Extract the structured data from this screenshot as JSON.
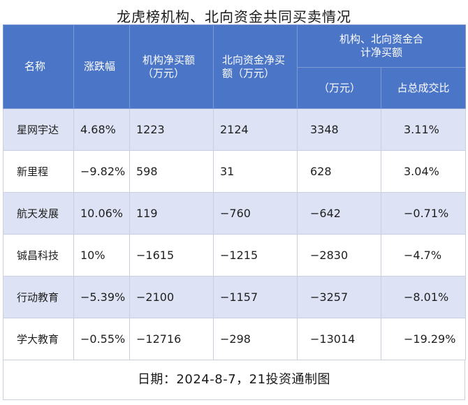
{
  "title": "龙虎榜机构、北向资金共同买卖情况",
  "headers": {
    "name": "名称",
    "change": "涨跌幅",
    "inst_net": "机构净买额（万元）",
    "north_net": "北向资金净买额（万元）",
    "combined_group": "机构、北向资金合计净买额",
    "combined_value": "（万元）",
    "combined_share": "占总成交比"
  },
  "rows": [
    {
      "name": "星网宇达",
      "change": "4.68%",
      "inst": "1223",
      "north": "2124",
      "total": "3348",
      "share": "3.11%"
    },
    {
      "name": "新里程",
      "change": "−9.82%",
      "inst": "598",
      "north": "31",
      "total": "628",
      "share": "3.04%"
    },
    {
      "name": "航天发展",
      "change": "10.06%",
      "inst": "119",
      "north": "−760",
      "total": "−642",
      "share": "−0.71%"
    },
    {
      "name": "铖昌科技",
      "change": "10%",
      "inst": "−1615",
      "north": "−1215",
      "total": "−2830",
      "share": "−4.7%"
    },
    {
      "name": "行动教育",
      "change": "−5.39%",
      "inst": "−2100",
      "north": "−1157",
      "total": "−3257",
      "share": "−8.01%"
    },
    {
      "name": "学大教育",
      "change": "−0.55%",
      "inst": "−12716",
      "north": "−298",
      "total": "−13014",
      "share": "−19.29%"
    }
  ],
  "footer": "日期：2024-8-7，21投资通制图",
  "colors": {
    "header_bg": "#4b75c6",
    "row_shade": "#dde3f4"
  }
}
